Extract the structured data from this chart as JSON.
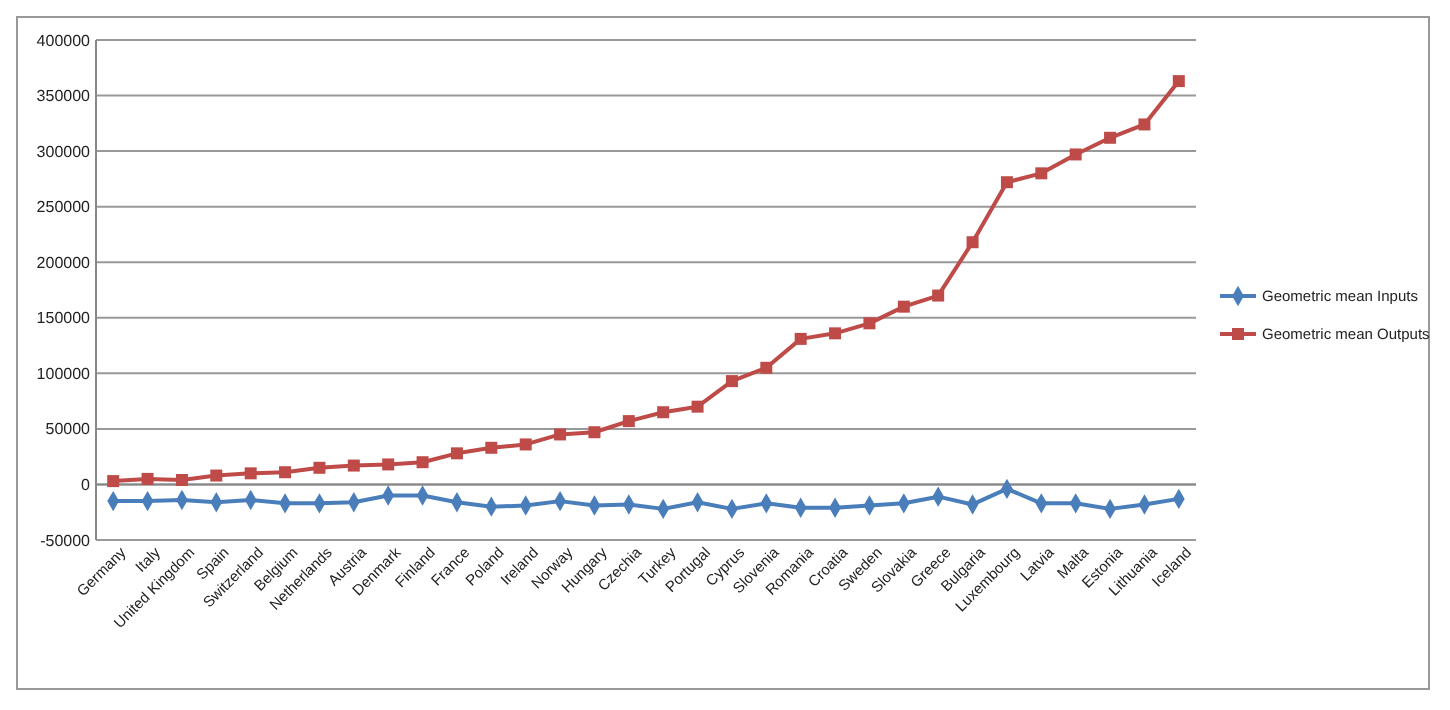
{
  "chart_data": {
    "type": "line",
    "categories": [
      "Germany",
      "Italy",
      "United Kingdom",
      "Spain",
      "Switzerland",
      "Belgium",
      "Netherlands",
      "Austria",
      "Denmark",
      "Finland",
      "France",
      "Poland",
      "Ireland",
      "Norway",
      "Hungary",
      "Czechia",
      "Turkey",
      "Portugal",
      "Cyprus",
      "Slovenia",
      "Romania",
      "Croatia",
      "Sweden",
      "Slovakia",
      "Greece",
      "Bulgaria",
      "Luxembourg",
      "Latvia",
      "Malta",
      "Estonia",
      "Lithuania",
      "Iceland"
    ],
    "series": [
      {
        "name": "Geometric mean Inputs",
        "color": "#4a7ebb",
        "marker": "diamond",
        "values": [
          -15000,
          -15000,
          -14000,
          -16000,
          -14000,
          -17000,
          -17000,
          -16000,
          -10000,
          -10000,
          -16000,
          -20000,
          -19000,
          -15000,
          -19000,
          -18000,
          -22000,
          -16000,
          -22000,
          -17000,
          -21000,
          -21000,
          -19000,
          -17000,
          -11000,
          -18000,
          -4000,
          -17000,
          -17000,
          -22000,
          -18000,
          -13000
        ]
      },
      {
        "name": "Geometric mean Outputs",
        "color": "#be4b48",
        "marker": "square",
        "values": [
          3000,
          5000,
          4000,
          8000,
          10000,
          11000,
          15000,
          17000,
          18000,
          20000,
          28000,
          33000,
          36000,
          45000,
          47000,
          57000,
          65000,
          70000,
          93000,
          105000,
          131000,
          136000,
          145000,
          160000,
          170000,
          218000,
          272000,
          280000,
          297000,
          312000,
          324000,
          363000
        ]
      }
    ],
    "ylim": [
      -50000,
      400000
    ],
    "yticks": [
      -50000,
      0,
      50000,
      100000,
      150000,
      200000,
      250000,
      300000,
      350000,
      400000
    ],
    "grid": "y",
    "legend": "right",
    "line_style": "solid"
  }
}
